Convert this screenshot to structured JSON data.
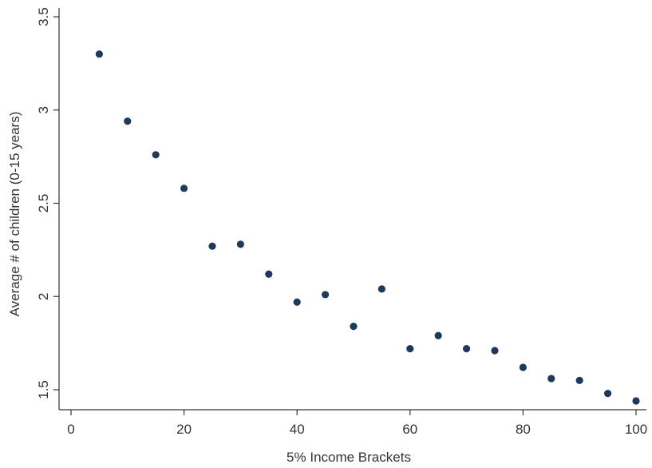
{
  "chart_data": {
    "type": "scatter",
    "title": "",
    "xlabel": "5% Income Brackets",
    "ylabel": "Average # of children (0-15 years)",
    "xlim": [
      0,
      100
    ],
    "ylim": [
      1.43,
      3.5
    ],
    "xticks": [
      0,
      20,
      40,
      60,
      80,
      100
    ],
    "xtick_labels": [
      "0",
      "20",
      "40",
      "60",
      "80",
      "100"
    ],
    "yticks": [
      1.5,
      2,
      2.5,
      3,
      3.5
    ],
    "ytick_labels": [
      "1.5",
      "2",
      "2.5",
      "3",
      "3.5"
    ],
    "grid": false,
    "legend": "none",
    "marker_color": "#1d3a5c",
    "series": [
      {
        "x": [
          5,
          10,
          15,
          20,
          25,
          30,
          35,
          40,
          45,
          50,
          55,
          60,
          65,
          70,
          75,
          80,
          85,
          90,
          95,
          100
        ],
        "y": [
          3.3,
          2.94,
          2.76,
          2.58,
          2.27,
          2.28,
          2.12,
          1.97,
          2.01,
          1.84,
          2.04,
          1.72,
          1.79,
          1.72,
          1.71,
          1.62,
          1.56,
          1.55,
          1.48,
          1.44
        ]
      }
    ]
  }
}
